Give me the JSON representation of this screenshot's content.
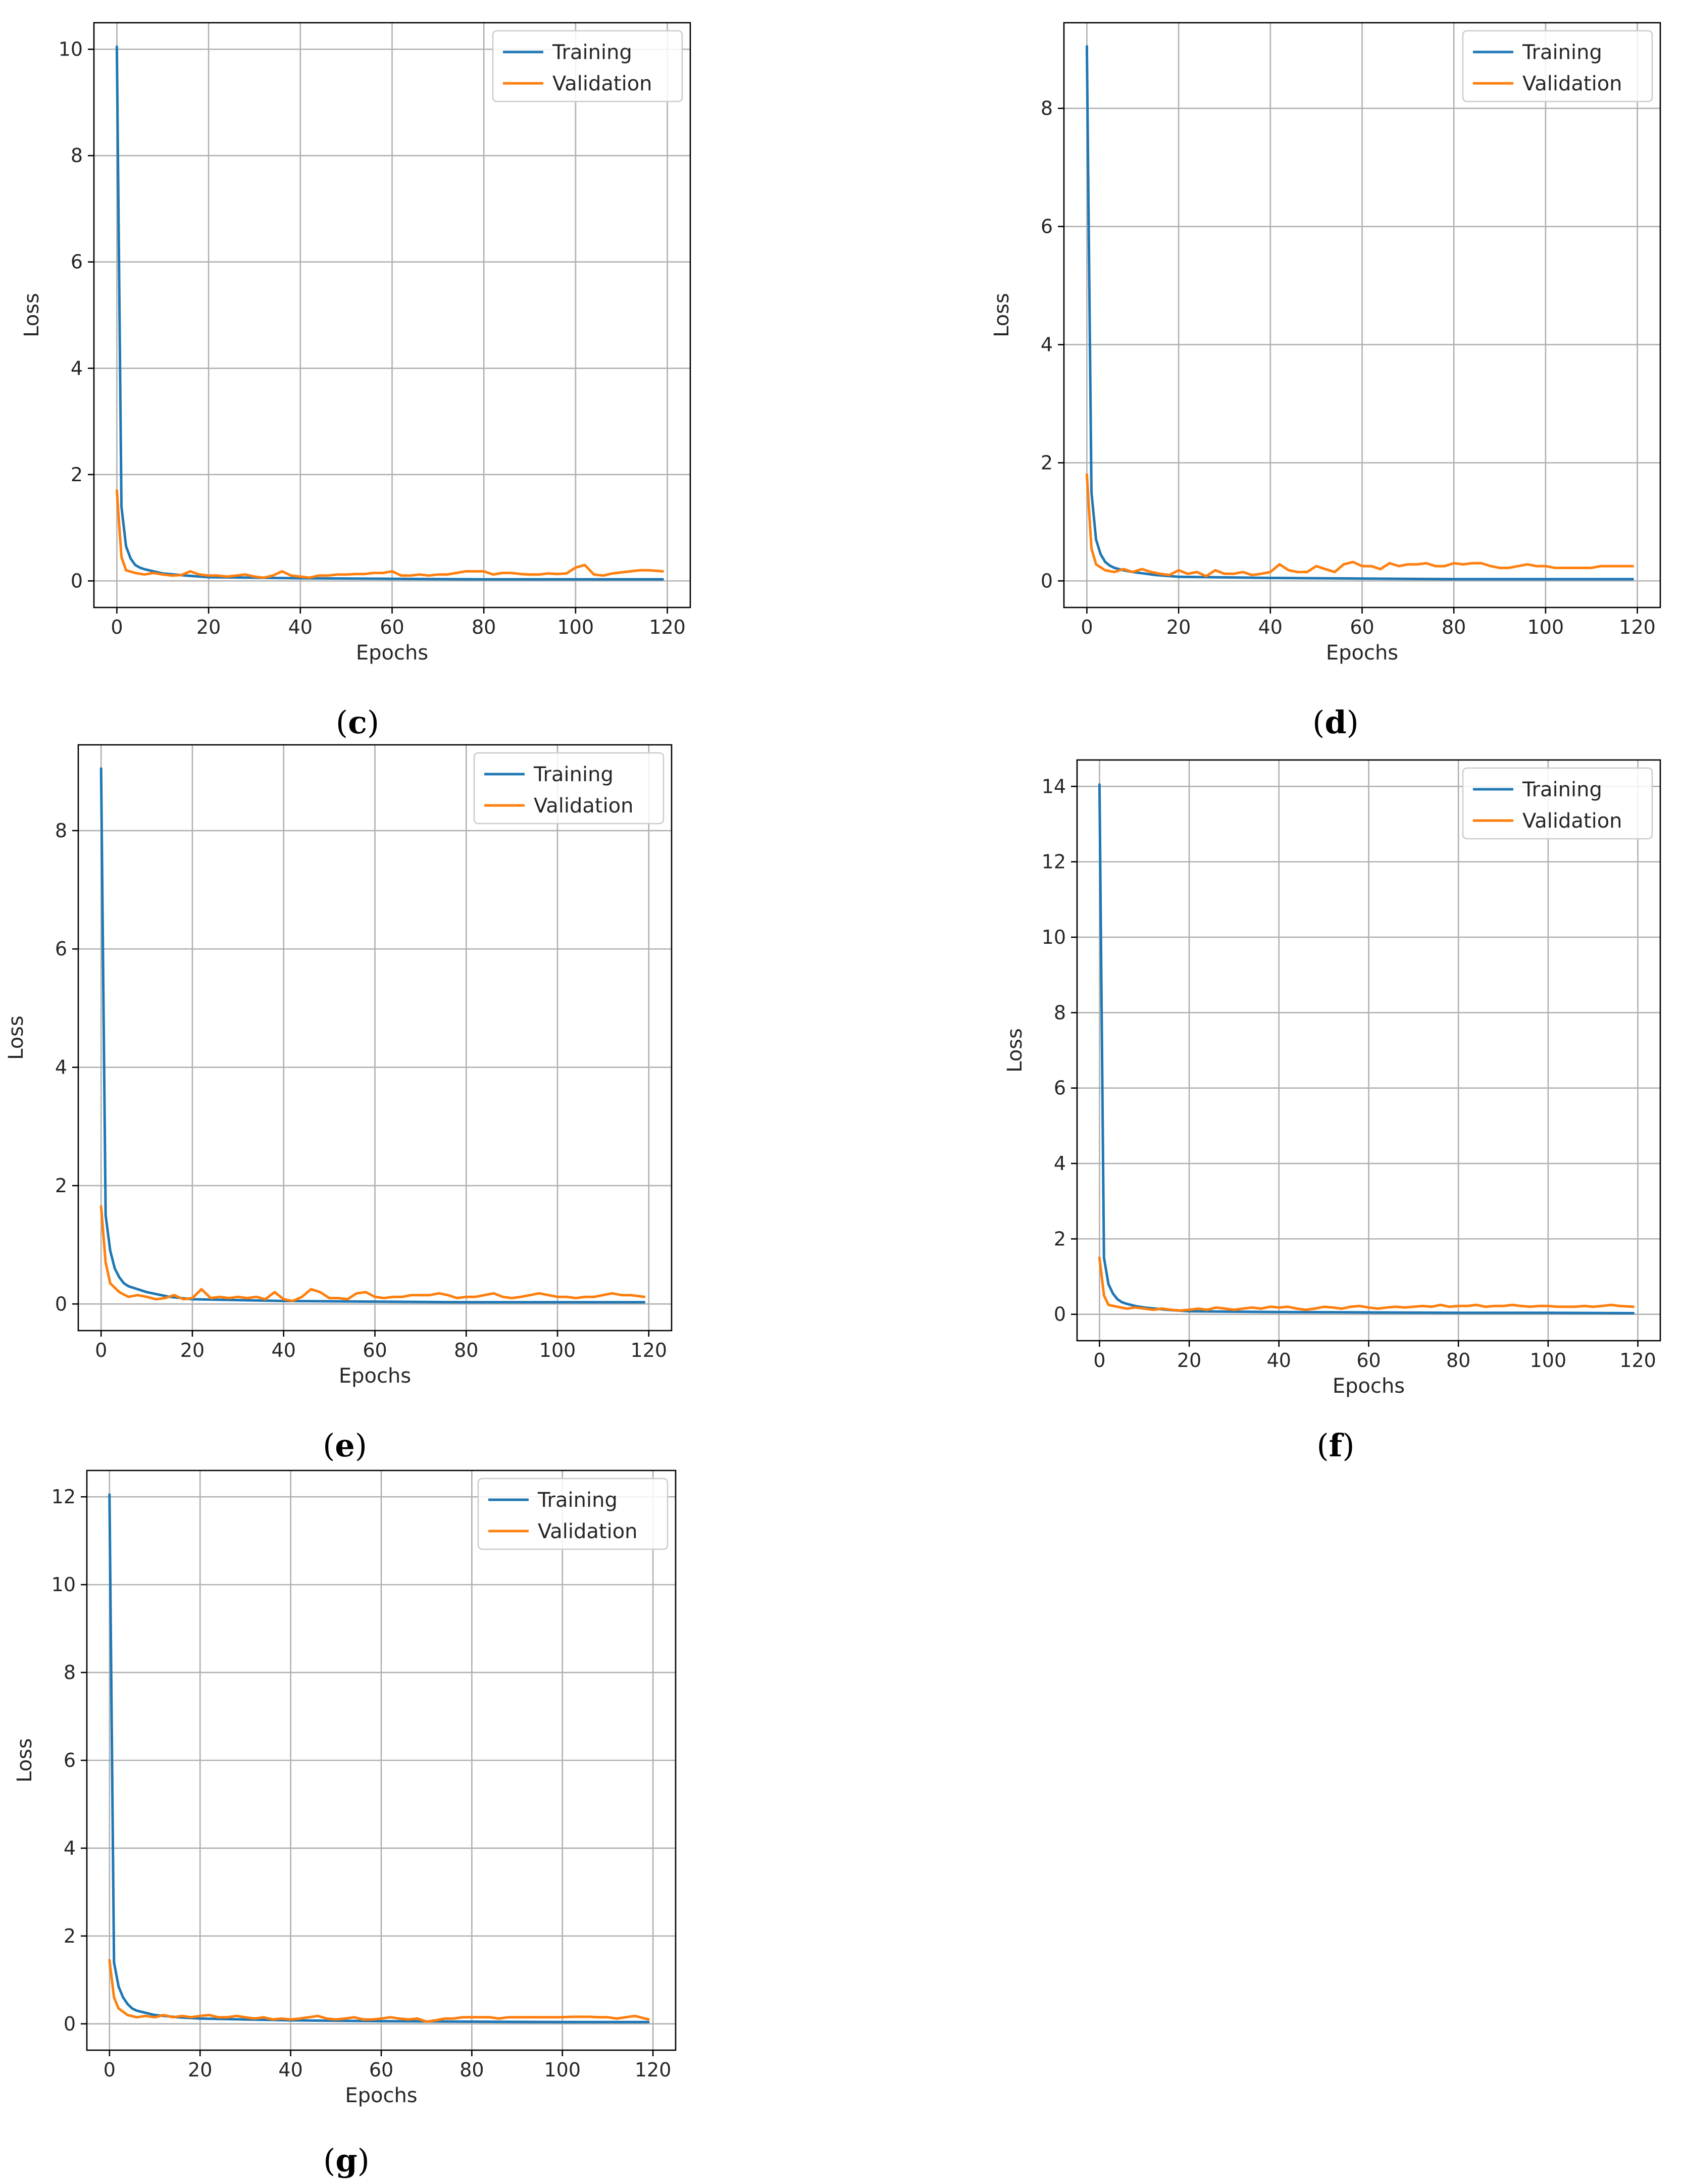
{
  "colors": {
    "training": "#1f77b4",
    "validation": "#ff7f0e"
  },
  "chart_data": [
    {
      "panel": "c",
      "type": "line",
      "xlabel": "Epochs",
      "ylabel": "Loss",
      "xlim": [
        -5,
        125
      ],
      "ylim": [
        -0.5,
        10.5
      ],
      "xticks": [
        0,
        20,
        40,
        60,
        80,
        100,
        120
      ],
      "yticks": [
        0,
        2,
        4,
        6,
        8,
        10
      ],
      "grid": true,
      "legend": "top-right",
      "series": [
        {
          "name": "Training",
          "color": "#1f77b4",
          "x": [
            0,
            1,
            2,
            3,
            4,
            5,
            6,
            8,
            10,
            15,
            20,
            40,
            60,
            80,
            100,
            119
          ],
          "y": [
            10.05,
            1.4,
            0.65,
            0.42,
            0.3,
            0.25,
            0.22,
            0.18,
            0.14,
            0.1,
            0.07,
            0.05,
            0.04,
            0.03,
            0.03,
            0.03
          ]
        },
        {
          "name": "Validation",
          "color": "#ff7f0e",
          "x": [
            0,
            1,
            2,
            4,
            6,
            8,
            10,
            12,
            14,
            16,
            18,
            20,
            22,
            24,
            26,
            28,
            30,
            32,
            34,
            36,
            38,
            40,
            42,
            44,
            46,
            48,
            50,
            52,
            54,
            56,
            58,
            60,
            62,
            64,
            66,
            68,
            70,
            72,
            74,
            76,
            78,
            80,
            82,
            84,
            86,
            88,
            90,
            92,
            94,
            96,
            98,
            100,
            102,
            104,
            106,
            108,
            110,
            112,
            114,
            116,
            119
          ],
          "y": [
            1.7,
            0.45,
            0.2,
            0.15,
            0.12,
            0.15,
            0.12,
            0.1,
            0.11,
            0.18,
            0.12,
            0.1,
            0.1,
            0.08,
            0.1,
            0.12,
            0.08,
            0.06,
            0.1,
            0.18,
            0.1,
            0.08,
            0.06,
            0.1,
            0.1,
            0.12,
            0.12,
            0.13,
            0.13,
            0.15,
            0.15,
            0.18,
            0.1,
            0.1,
            0.12,
            0.1,
            0.12,
            0.12,
            0.15,
            0.18,
            0.18,
            0.18,
            0.12,
            0.15,
            0.15,
            0.13,
            0.12,
            0.12,
            0.14,
            0.13,
            0.14,
            0.25,
            0.3,
            0.12,
            0.1,
            0.14,
            0.16,
            0.18,
            0.2,
            0.2,
            0.18
          ]
        }
      ]
    },
    {
      "panel": "d",
      "type": "line",
      "xlabel": "Epochs",
      "ylabel": "Loss",
      "xlim": [
        -5,
        125
      ],
      "ylim": [
        -0.45,
        9.45
      ],
      "xticks": [
        0,
        20,
        40,
        60,
        80,
        100,
        120
      ],
      "yticks": [
        0,
        2,
        4,
        6,
        8
      ],
      "grid": true,
      "legend": "top-right",
      "series": [
        {
          "name": "Training",
          "color": "#1f77b4",
          "x": [
            0,
            1,
            2,
            3,
            4,
            5,
            6,
            8,
            10,
            15,
            20,
            40,
            60,
            80,
            100,
            119
          ],
          "y": [
            9.05,
            1.5,
            0.7,
            0.45,
            0.32,
            0.26,
            0.22,
            0.18,
            0.15,
            0.1,
            0.07,
            0.05,
            0.04,
            0.03,
            0.03,
            0.03
          ]
        },
        {
          "name": "Validation",
          "color": "#ff7f0e",
          "x": [
            0,
            1,
            2,
            4,
            6,
            8,
            10,
            12,
            14,
            16,
            18,
            20,
            22,
            24,
            26,
            28,
            30,
            32,
            34,
            36,
            38,
            40,
            42,
            44,
            46,
            48,
            50,
            52,
            54,
            56,
            58,
            60,
            62,
            64,
            66,
            68,
            70,
            72,
            74,
            76,
            78,
            80,
            82,
            84,
            86,
            88,
            90,
            92,
            94,
            96,
            98,
            100,
            102,
            104,
            106,
            108,
            110,
            112,
            114,
            116,
            119
          ],
          "y": [
            1.8,
            0.55,
            0.28,
            0.18,
            0.15,
            0.2,
            0.15,
            0.2,
            0.15,
            0.12,
            0.1,
            0.18,
            0.12,
            0.15,
            0.08,
            0.18,
            0.12,
            0.12,
            0.15,
            0.1,
            0.12,
            0.15,
            0.28,
            0.18,
            0.15,
            0.15,
            0.25,
            0.2,
            0.15,
            0.28,
            0.32,
            0.25,
            0.25,
            0.2,
            0.3,
            0.25,
            0.28,
            0.28,
            0.3,
            0.25,
            0.25,
            0.3,
            0.28,
            0.3,
            0.3,
            0.25,
            0.22,
            0.22,
            0.25,
            0.28,
            0.25,
            0.25,
            0.22,
            0.22,
            0.22,
            0.22,
            0.22,
            0.25,
            0.25,
            0.25,
            0.25
          ]
        }
      ]
    },
    {
      "panel": "e",
      "type": "line",
      "xlabel": "Epochs",
      "ylabel": "Loss",
      "xlim": [
        -5,
        125
      ],
      "ylim": [
        -0.45,
        9.45
      ],
      "xticks": [
        0,
        20,
        40,
        60,
        80,
        100,
        120
      ],
      "yticks": [
        0,
        2,
        4,
        6,
        8
      ],
      "grid": true,
      "legend": "top-right",
      "series": [
        {
          "name": "Training",
          "color": "#1f77b4",
          "x": [
            0,
            1,
            2,
            3,
            4,
            5,
            6,
            8,
            10,
            15,
            20,
            40,
            60,
            80,
            100,
            119
          ],
          "y": [
            9.05,
            1.5,
            0.9,
            0.6,
            0.45,
            0.35,
            0.3,
            0.25,
            0.2,
            0.12,
            0.08,
            0.05,
            0.04,
            0.03,
            0.03,
            0.03
          ]
        },
        {
          "name": "Validation",
          "color": "#ff7f0e",
          "x": [
            0,
            1,
            2,
            4,
            6,
            8,
            10,
            12,
            14,
            16,
            18,
            20,
            22,
            24,
            26,
            28,
            30,
            32,
            34,
            36,
            38,
            40,
            42,
            44,
            46,
            48,
            50,
            52,
            54,
            56,
            58,
            60,
            62,
            64,
            66,
            68,
            70,
            72,
            74,
            76,
            78,
            80,
            82,
            84,
            86,
            88,
            90,
            92,
            94,
            96,
            98,
            100,
            102,
            104,
            106,
            108,
            110,
            112,
            114,
            116,
            119
          ],
          "y": [
            1.65,
            0.7,
            0.35,
            0.2,
            0.12,
            0.15,
            0.12,
            0.08,
            0.1,
            0.15,
            0.08,
            0.1,
            0.25,
            0.1,
            0.12,
            0.1,
            0.12,
            0.1,
            0.12,
            0.08,
            0.2,
            0.08,
            0.05,
            0.12,
            0.25,
            0.2,
            0.1,
            0.1,
            0.08,
            0.18,
            0.2,
            0.12,
            0.1,
            0.12,
            0.12,
            0.15,
            0.15,
            0.15,
            0.18,
            0.15,
            0.1,
            0.12,
            0.12,
            0.15,
            0.18,
            0.12,
            0.1,
            0.12,
            0.15,
            0.18,
            0.15,
            0.12,
            0.12,
            0.1,
            0.12,
            0.12,
            0.15,
            0.18,
            0.15,
            0.15,
            0.12
          ]
        }
      ]
    },
    {
      "panel": "f",
      "type": "line",
      "xlabel": "Epochs",
      "ylabel": "Loss",
      "xlim": [
        -5,
        125
      ],
      "ylim": [
        -0.7,
        14.7
      ],
      "xticks": [
        0,
        20,
        40,
        60,
        80,
        100,
        120
      ],
      "yticks": [
        0,
        2,
        4,
        6,
        8,
        10,
        12,
        14
      ],
      "grid": true,
      "legend": "top-right",
      "series": [
        {
          "name": "Training",
          "color": "#1f77b4",
          "x": [
            0,
            1,
            2,
            3,
            4,
            5,
            6,
            8,
            10,
            15,
            20,
            40,
            60,
            80,
            100,
            119
          ],
          "y": [
            14.05,
            1.5,
            0.8,
            0.55,
            0.4,
            0.32,
            0.28,
            0.22,
            0.18,
            0.12,
            0.08,
            0.06,
            0.05,
            0.04,
            0.04,
            0.03
          ]
        },
        {
          "name": "Validation",
          "color": "#ff7f0e",
          "x": [
            0,
            1,
            2,
            4,
            6,
            8,
            10,
            12,
            14,
            16,
            18,
            20,
            22,
            24,
            26,
            28,
            30,
            32,
            34,
            36,
            38,
            40,
            42,
            44,
            46,
            48,
            50,
            52,
            54,
            56,
            58,
            60,
            62,
            64,
            66,
            68,
            70,
            72,
            74,
            76,
            78,
            80,
            82,
            84,
            86,
            88,
            90,
            92,
            94,
            96,
            98,
            100,
            102,
            104,
            106,
            108,
            110,
            112,
            114,
            116,
            119
          ],
          "y": [
            1.5,
            0.5,
            0.25,
            0.2,
            0.15,
            0.18,
            0.15,
            0.12,
            0.15,
            0.12,
            0.1,
            0.12,
            0.15,
            0.12,
            0.18,
            0.15,
            0.12,
            0.15,
            0.18,
            0.15,
            0.2,
            0.18,
            0.2,
            0.15,
            0.12,
            0.15,
            0.2,
            0.18,
            0.15,
            0.2,
            0.22,
            0.18,
            0.15,
            0.18,
            0.2,
            0.18,
            0.2,
            0.22,
            0.2,
            0.25,
            0.2,
            0.22,
            0.22,
            0.25,
            0.2,
            0.22,
            0.22,
            0.25,
            0.22,
            0.2,
            0.22,
            0.22,
            0.2,
            0.2,
            0.2,
            0.22,
            0.2,
            0.22,
            0.25,
            0.22,
            0.2
          ]
        }
      ]
    },
    {
      "panel": "g",
      "type": "line",
      "xlabel": "Epochs",
      "ylabel": "Loss",
      "xlim": [
        -5,
        125
      ],
      "ylim": [
        -0.6,
        12.6
      ],
      "xticks": [
        0,
        20,
        40,
        60,
        80,
        100,
        120
      ],
      "yticks": [
        0,
        2,
        4,
        6,
        8,
        10,
        12
      ],
      "grid": true,
      "legend": "top-right",
      "series": [
        {
          "name": "Training",
          "color": "#1f77b4",
          "x": [
            0,
            1,
            2,
            3,
            4,
            5,
            6,
            8,
            10,
            15,
            20,
            40,
            60,
            80,
            100,
            119
          ],
          "y": [
            12.05,
            1.4,
            0.85,
            0.6,
            0.45,
            0.35,
            0.3,
            0.25,
            0.2,
            0.15,
            0.12,
            0.08,
            0.06,
            0.05,
            0.04,
            0.04
          ]
        },
        {
          "name": "Validation",
          "color": "#ff7f0e",
          "x": [
            0,
            1,
            2,
            4,
            6,
            8,
            10,
            12,
            14,
            16,
            18,
            20,
            22,
            24,
            26,
            28,
            30,
            32,
            34,
            36,
            38,
            40,
            42,
            44,
            46,
            48,
            50,
            52,
            54,
            56,
            58,
            60,
            62,
            64,
            66,
            68,
            70,
            72,
            74,
            76,
            78,
            80,
            82,
            84,
            86,
            88,
            90,
            92,
            94,
            96,
            98,
            100,
            102,
            104,
            106,
            108,
            110,
            112,
            114,
            116,
            119
          ],
          "y": [
            1.45,
            0.6,
            0.35,
            0.2,
            0.15,
            0.18,
            0.15,
            0.2,
            0.15,
            0.18,
            0.15,
            0.18,
            0.2,
            0.15,
            0.15,
            0.18,
            0.15,
            0.12,
            0.15,
            0.1,
            0.12,
            0.1,
            0.12,
            0.15,
            0.18,
            0.12,
            0.1,
            0.12,
            0.15,
            0.1,
            0.1,
            0.12,
            0.15,
            0.12,
            0.1,
            0.12,
            0.05,
            0.08,
            0.12,
            0.12,
            0.15,
            0.15,
            0.15,
            0.15,
            0.12,
            0.15,
            0.15,
            0.15,
            0.15,
            0.15,
            0.15,
            0.15,
            0.16,
            0.16,
            0.16,
            0.15,
            0.15,
            0.12,
            0.15,
            0.18,
            0.1
          ]
        }
      ]
    }
  ]
}
